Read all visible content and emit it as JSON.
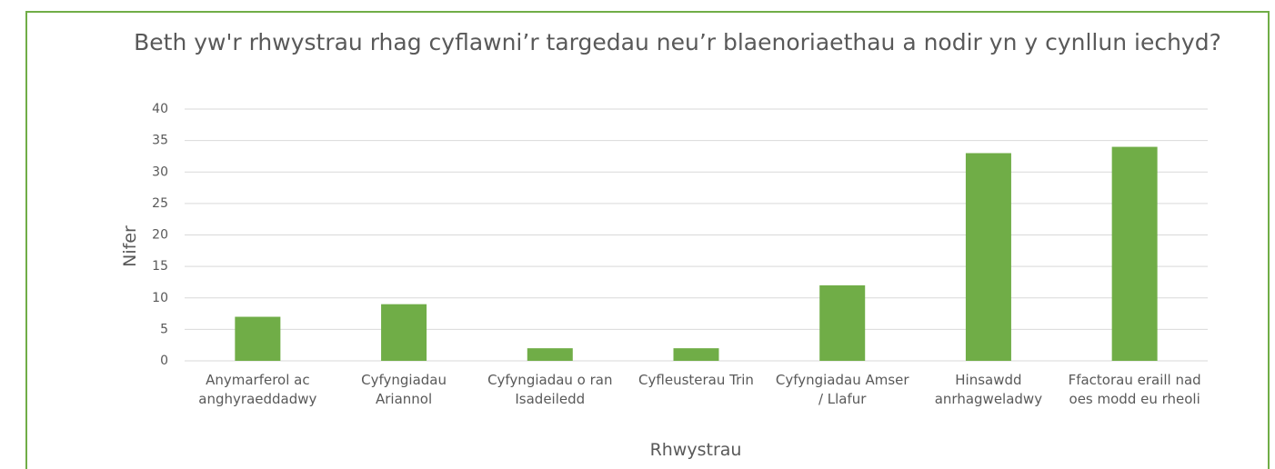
{
  "chart_data": {
    "type": "bar",
    "title": "Beth yw'r rhwystrau rhag cyflawni’r targedau neu’r blaenoriaethau a nodir yn y cynllun iechyd?",
    "x_label": "Rhwystrau",
    "y_label": "Nifer",
    "categories": [
      "Anymarferol ac anghyraeddadwy",
      "Cyfyngiadau Ariannol",
      "Cyfyngiadau o ran Isadeiledd",
      "Cyfleusterau Trin",
      "Cyfyngiadau Amser / Llafur",
      "Hinsawdd anrhagweladwy",
      "Ffactorau eraill nad oes modd eu rheoli"
    ],
    "values": [
      7,
      9,
      2,
      2,
      12,
      33,
      34
    ],
    "color": "#70ad47",
    "ylim": [
      0,
      40
    ],
    "yticks": [
      0,
      5,
      10,
      15,
      20,
      25,
      30,
      35,
      40
    ],
    "grid": true
  }
}
